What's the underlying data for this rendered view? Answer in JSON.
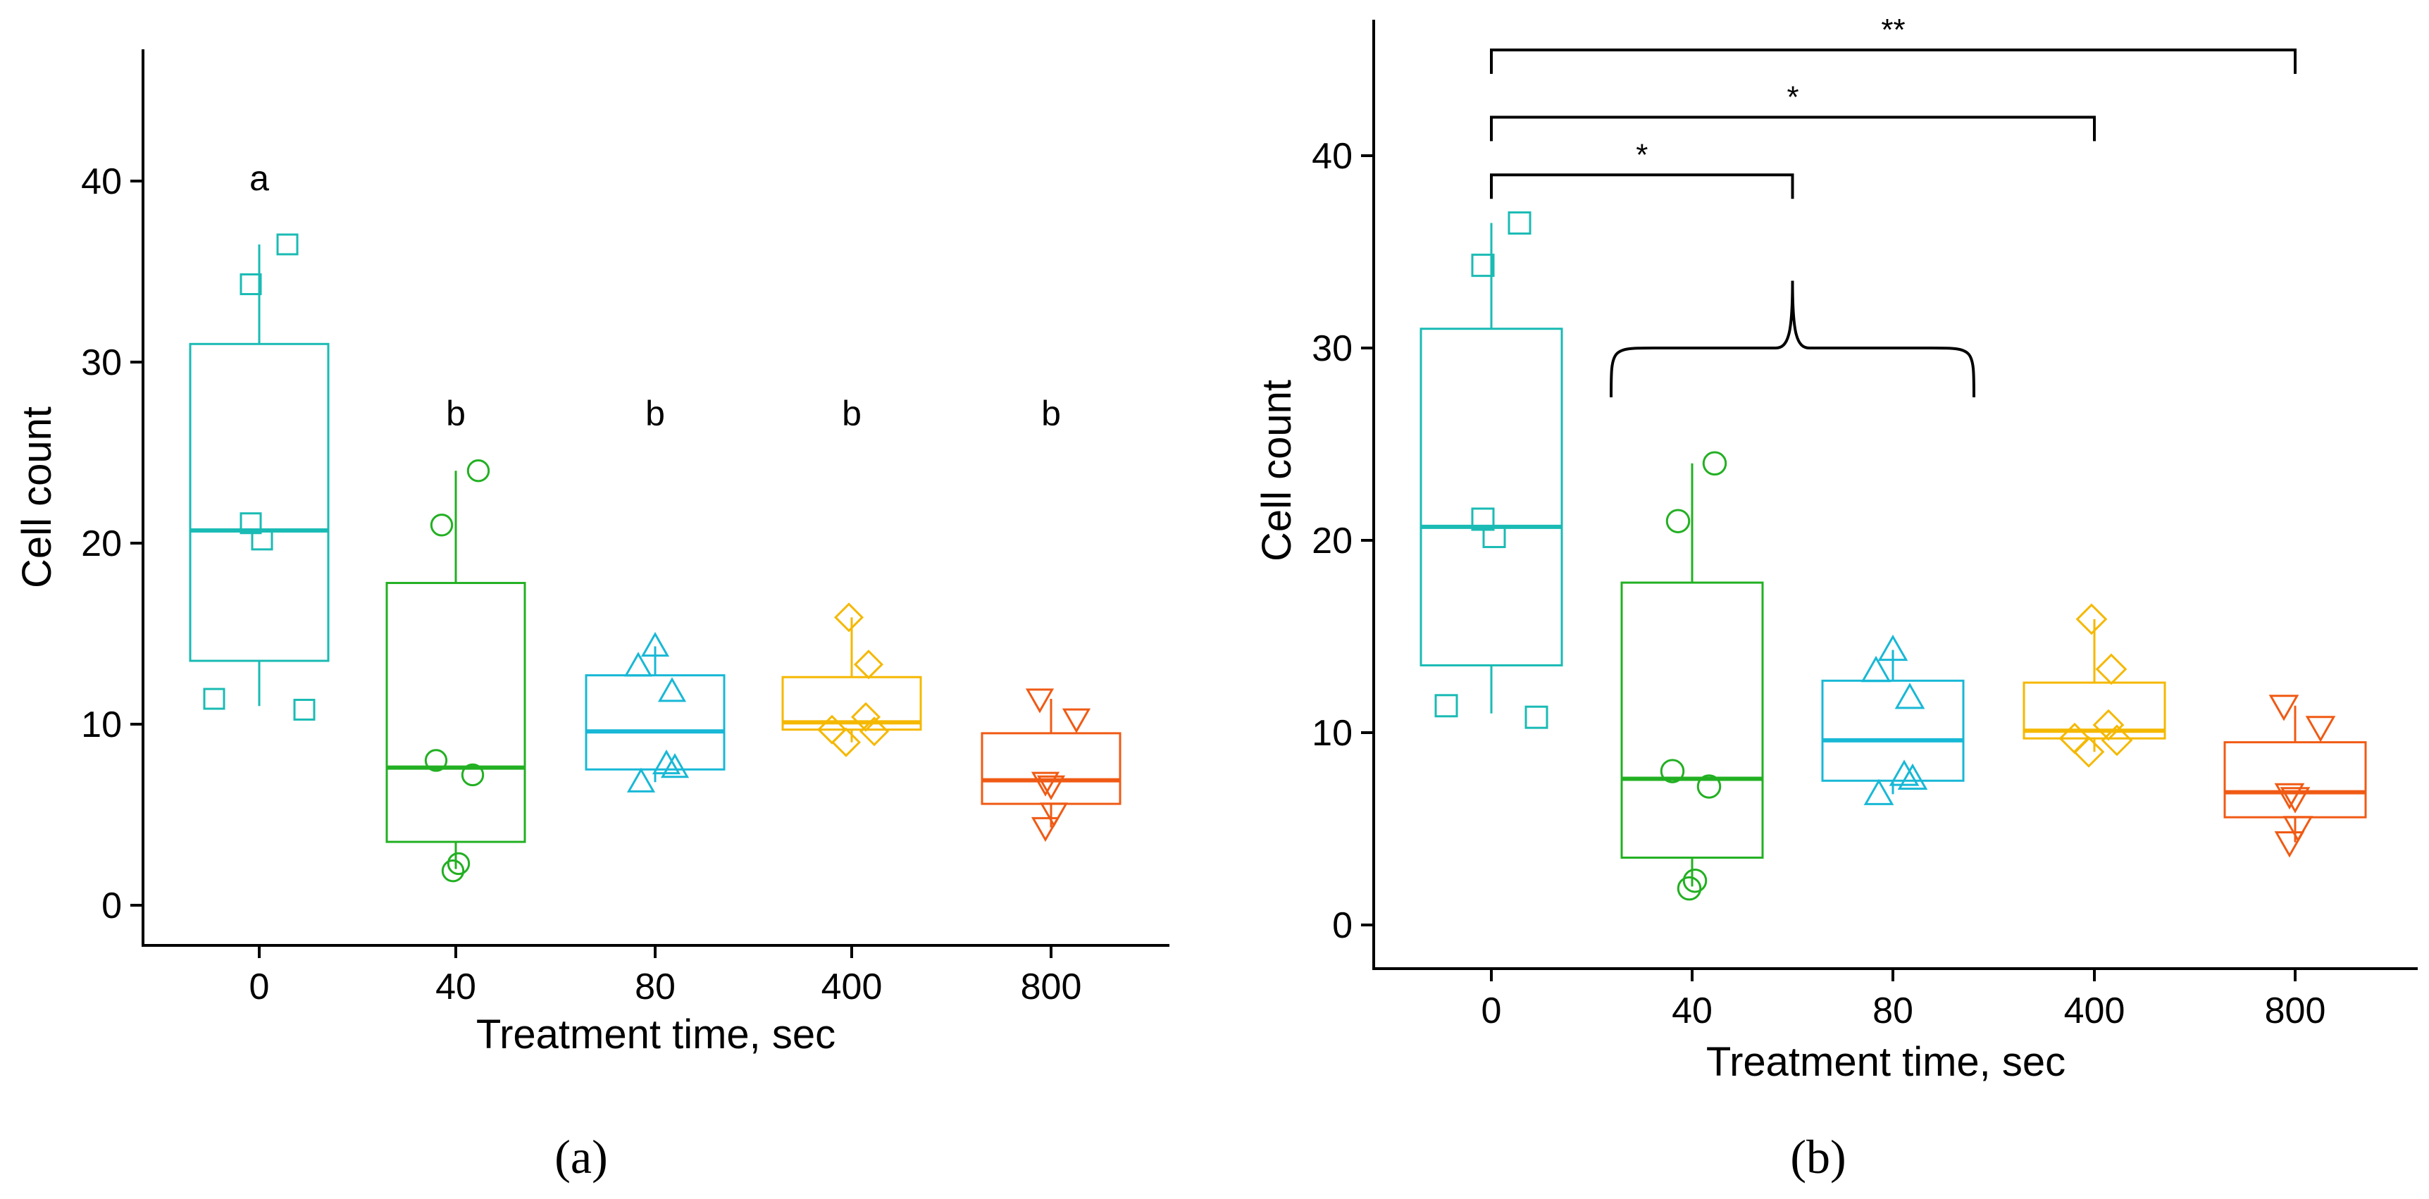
{
  "colors": {
    "0": "#1ABBB4",
    "40": "#22B022",
    "80": "#18B8D6",
    "400": "#F5B800",
    "800": "#F05A14",
    "axis": "#000000"
  },
  "groups": [
    "0",
    "40",
    "80",
    "400",
    "800"
  ],
  "shapes": {
    "0": "square-icon",
    "40": "circle-icon",
    "80": "triangle-up-icon",
    "400": "diamond-icon",
    "800": "triangle-down-icon"
  },
  "chart_data": [
    {
      "type": "box",
      "panel_label": "(a)",
      "xlabel": "Treatment time, sec",
      "ylabel": "Cell count",
      "categories": [
        "0",
        "40",
        "80",
        "400",
        "800"
      ],
      "yticks": [
        "0",
        "10",
        "20",
        "30",
        "40"
      ],
      "ylim": [
        -2,
        47
      ],
      "grid": false,
      "series": [
        {
          "name": "0",
          "q1": 13.5,
          "median": 20.7,
          "q3": 31.0,
          "whisker_low": 11.0,
          "whisker_high": 36.5,
          "points": [
            36.5,
            34.3,
            21.1,
            20.2,
            11.4,
            10.8
          ]
        },
        {
          "name": "40",
          "q1": 3.5,
          "median": 7.6,
          "q3": 17.8,
          "whisker_low": 2.0,
          "whisker_high": 24.0,
          "points": [
            24.0,
            21.0,
            8.0,
            7.2,
            2.3,
            1.9
          ]
        },
        {
          "name": "80",
          "q1": 7.5,
          "median": 9.6,
          "q3": 12.7,
          "whisker_low": 6.8,
          "whisker_high": 14.3,
          "points": [
            14.3,
            13.2,
            11.8,
            7.8,
            7.6,
            6.8
          ]
        },
        {
          "name": "400",
          "q1": 9.7,
          "median": 10.1,
          "q3": 12.6,
          "whisker_low": 9.0,
          "whisker_high": 15.9,
          "points": [
            15.9,
            13.3,
            10.4,
            9.7,
            9.6,
            9.0
          ]
        },
        {
          "name": "800",
          "q1": 5.6,
          "median": 6.9,
          "q3": 9.5,
          "whisker_low": 4.3,
          "whisker_high": 11.4,
          "points": [
            11.4,
            10.3,
            6.8,
            6.6,
            5.1,
            4.3
          ]
        }
      ],
      "annotations": [
        {
          "group": "0",
          "text": "a",
          "y": 39.5
        },
        {
          "group": "40",
          "text": "b",
          "y": 26.5
        },
        {
          "group": "80",
          "text": "b",
          "y": 26.5
        },
        {
          "group": "400",
          "text": "b",
          "y": 26.5
        },
        {
          "group": "800",
          "text": "b",
          "y": 26.5
        }
      ]
    },
    {
      "type": "box",
      "panel_label": "(b)",
      "xlabel": "Treatment time, sec",
      "ylabel": "Cell count",
      "categories": [
        "0",
        "40",
        "80",
        "400",
        "800"
      ],
      "yticks": [
        "0",
        "10",
        "20",
        "30",
        "40"
      ],
      "ylim": [
        -2,
        47
      ],
      "grid": false,
      "series": [
        {
          "name": "0",
          "q1": 13.5,
          "median": 20.7,
          "q3": 31.0,
          "whisker_low": 11.0,
          "whisker_high": 36.5,
          "points": [
            36.5,
            34.3,
            21.1,
            20.2,
            11.4,
            10.8
          ]
        },
        {
          "name": "40",
          "q1": 3.5,
          "median": 7.6,
          "q3": 17.8,
          "whisker_low": 2.0,
          "whisker_high": 24.0,
          "points": [
            24.0,
            21.0,
            8.0,
            7.2,
            2.3,
            1.9
          ]
        },
        {
          "name": "80",
          "q1": 7.5,
          "median": 9.6,
          "q3": 12.7,
          "whisker_low": 6.8,
          "whisker_high": 14.3,
          "points": [
            14.3,
            13.2,
            11.8,
            7.8,
            7.6,
            6.8
          ]
        },
        {
          "name": "400",
          "q1": 9.7,
          "median": 10.1,
          "q3": 12.6,
          "whisker_low": 9.0,
          "whisker_high": 15.9,
          "points": [
            15.9,
            13.3,
            10.4,
            9.7,
            9.6,
            9.0
          ]
        },
        {
          "name": "800",
          "q1": 5.6,
          "median": 6.9,
          "q3": 9.5,
          "whisker_low": 4.3,
          "whisker_high": 11.4,
          "points": [
            11.4,
            10.3,
            6.8,
            6.6,
            5.1,
            4.3
          ]
        }
      ],
      "significance": [
        {
          "from": "0",
          "to": "800",
          "label": "**",
          "y": 45.5
        },
        {
          "from": "0",
          "to": "400",
          "label": "*",
          "y": 42.0
        },
        {
          "from": "0",
          "to": "40-80",
          "label": "*",
          "y": 39.0
        }
      ],
      "group_brace": {
        "from": "40",
        "to": "80",
        "y": 30.0
      }
    }
  ]
}
